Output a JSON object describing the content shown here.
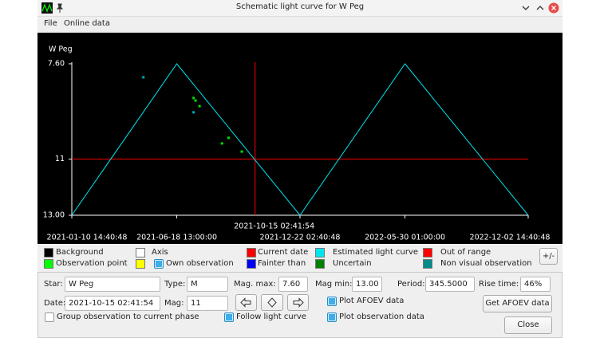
{
  "window": {
    "title": "Schematic light curve for W Peg"
  },
  "menu": [
    "File",
    "Online data"
  ],
  "chart_data": {
    "type": "line",
    "ylabel": "W Peg",
    "ylim": [
      7.6,
      13
    ],
    "y_inverted": true,
    "yticks": [
      {
        "value": 7.6,
        "label": "7.60"
      },
      11,
      {
        "value": 13,
        "label": "13.00"
      }
    ],
    "xlim": [
      "2021-01-10 14:40:48",
      "2022-12-02 14:40:48"
    ],
    "xticks": [
      "2021-01-10 14:40:48",
      "2021-06-18 13:00:00",
      "2021-12-22 02:40:48",
      "2022-05-30 01:00:00",
      "2022-12-02 14:40:48"
    ],
    "background": "#000000",
    "axis_color": "#ffffff",
    "current": {
      "date": "2021-10-15 02:41:54",
      "mag": 11,
      "color": "#ff0000"
    },
    "series": [
      {
        "type": "line",
        "color": "#00e5ee",
        "x": [
          "2021-01-10 14:40:48",
          "2021-06-18 13:00:00",
          "2021-12-22 02:40:48",
          "2022-05-30 01:00:00",
          "2022-12-02 14:40:48"
        ],
        "values": [
          13,
          7.6,
          13,
          7.6,
          13
        ]
      },
      {
        "type": "scatter",
        "color": "#00e000",
        "x": [
          "2021-07-14",
          "2021-07-17",
          "2021-07-23",
          "2021-09-05",
          "2021-08-26",
          "2021-09-25"
        ],
        "values": [
          8.82,
          8.91,
          9.11,
          10.24,
          10.44,
          10.73
        ]
      },
      {
        "type": "scatter",
        "color": "#00a8c0",
        "x": [
          "2021-04-29",
          "2021-07-14"
        ],
        "values": [
          8.08,
          9.33
        ]
      }
    ],
    "legend": [
      {
        "label": "Background",
        "color": "#000000"
      },
      {
        "label": "Axis",
        "color": "#ffffff"
      },
      {
        "label": "Current date",
        "color": "#ff0000"
      },
      {
        "label": "Estimated light curve",
        "color": "#00e5ee"
      },
      {
        "label": "Out of range",
        "color": "#ff0000"
      },
      {
        "label": "Observation point",
        "color": "#00ff00"
      },
      {
        "label": "Own observation",
        "color": "#ffff00",
        "checkbox": true
      },
      {
        "label": "Fainter than",
        "color": "#0000ff"
      },
      {
        "label": "Uncertain",
        "color": "#008000"
      },
      {
        "label": "Non visual observation",
        "color": "#008b8b"
      }
    ]
  },
  "form": {
    "star": {
      "label": "Star:",
      "value": "W Peg"
    },
    "type": {
      "label": "Type:",
      "value": "M"
    },
    "mag_max": {
      "label": "Mag. max:",
      "value": "7.60"
    },
    "mag_min": {
      "label": "Mag min:",
      "value": "13.00"
    },
    "period": {
      "label": "Period:",
      "value": "345.5000"
    },
    "rise_time": {
      "label": "Rise time:",
      "value": "46%"
    },
    "date": {
      "label": "Date:",
      "value": "2021-10-15 02:41:54"
    },
    "mag": {
      "label": "Mag:",
      "value": "11"
    },
    "checkboxes": [
      {
        "label": "Plot AFOEV data",
        "checked": true
      },
      {
        "label": "Group observation to current phase",
        "checked": false
      },
      {
        "label": "Follow light curve",
        "checked": true
      },
      {
        "label": "Plot observation data",
        "checked": true
      }
    ],
    "buttons": {
      "plus_minus": "+/-",
      "get_afoev": "Get AFOEV data",
      "close": "Close"
    }
  }
}
